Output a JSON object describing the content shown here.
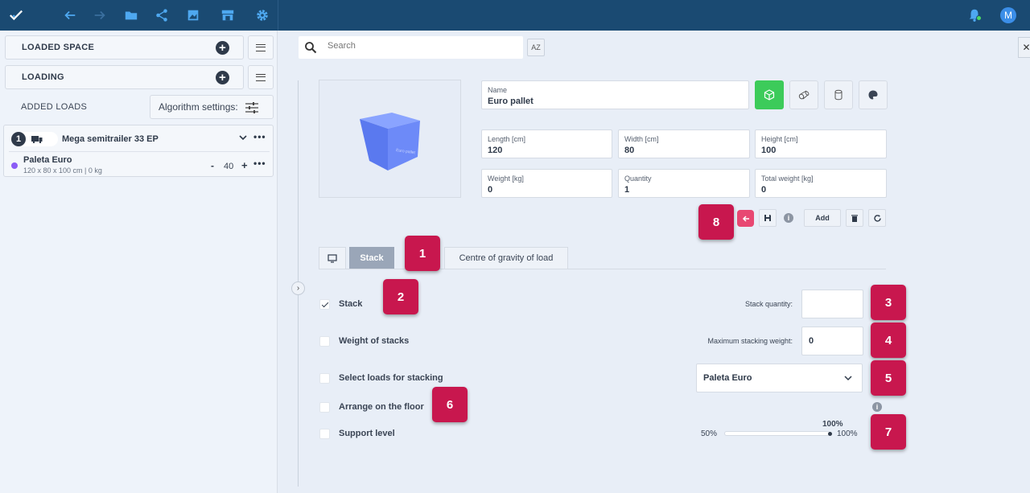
{
  "topbar": {
    "icons": [
      "logo-check-icon",
      "back-arrow-icon",
      "forward-arrow-icon",
      "folder-icon",
      "share-icon",
      "image-icon",
      "store-icon",
      "gear-icon",
      "bell-icon"
    ],
    "avatar_letter": "M",
    "colors": {
      "bg": "#1a4a72",
      "icon": "#4ea8f0"
    }
  },
  "sidebar": {
    "loaded_space_label": "LOADED SPACE",
    "loading_label": "LOADING",
    "added_loads_label": "ADDED LOADS",
    "algorithm_label": "Algorithm settings:",
    "vehicle": {
      "number": "1",
      "name": "Mega semitrailer 33 EP",
      "load": {
        "name": "Paleta Euro",
        "dims": "120 x 80 x 100 cm | 0 kg",
        "quantity": "40",
        "color": "#8b5cf6"
      }
    }
  },
  "search": {
    "placeholder": "Search",
    "sort_label": "AZ"
  },
  "form": {
    "preview_text": "Euro pallet",
    "name": {
      "label": "Name",
      "value": "Euro pallet"
    },
    "length": {
      "label": "Length [cm]",
      "value": "120"
    },
    "width": {
      "label": "Width [cm]",
      "value": "80"
    },
    "height": {
      "label": "Height [cm]",
      "value": "100"
    },
    "weight": {
      "label": "Weight [kg]",
      "value": "0"
    },
    "quantity": {
      "label": "Quantity",
      "value": "1"
    },
    "total_weight": {
      "label": "Total weight [kg]",
      "value": "0"
    },
    "add_label": "Add",
    "accent_green": "#3ccb5a"
  },
  "tabs": {
    "stack": "Stack",
    "gravity": "Centre of gravity of load"
  },
  "stack_options": {
    "stack_label": "Stack",
    "weight_of_stacks": "Weight of stacks",
    "select_loads": "Select loads for stacking",
    "arrange_floor": "Arrange on the floor",
    "support_level": "Support level",
    "stack_quantity_label": "Stack quantity:",
    "stack_quantity_value": "",
    "max_weight_label": "Maximum stacking weight:",
    "max_weight_value": "0",
    "select_value": "Paleta Euro",
    "slider": {
      "min_label": "50%",
      "max_label": "100%",
      "current_label": "100%",
      "value": 1.0
    }
  },
  "badges": [
    "1",
    "2",
    "3",
    "4",
    "5",
    "6",
    "7",
    "8"
  ],
  "badge_color": "#c8174e"
}
